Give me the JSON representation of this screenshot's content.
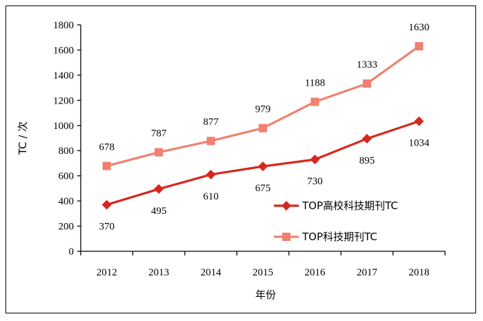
{
  "chart_data": {
    "type": "line",
    "xlabel": "年份",
    "ylabel": "TC / 次",
    "ylim": [
      0,
      1800
    ],
    "yticks": [
      0,
      200,
      400,
      600,
      800,
      1000,
      1200,
      1400,
      1600,
      1800
    ],
    "categories": [
      "2012",
      "2013",
      "2014",
      "2015",
      "2016",
      "2017",
      "2018"
    ],
    "grid": false,
    "legend_position": "bottom-right",
    "series": [
      {
        "name": "TOP高校科技期刊TC",
        "values": [
          370,
          495,
          610,
          675,
          730,
          895,
          1034
        ],
        "color": "#d8261c",
        "marker": "diamond",
        "label_position": "below"
      },
      {
        "name": "TOP科技期刊TC",
        "values": [
          678,
          787,
          877,
          979,
          1188,
          1333,
          1630
        ],
        "color": "#f08070",
        "marker": "square",
        "label_position": "above"
      }
    ]
  }
}
